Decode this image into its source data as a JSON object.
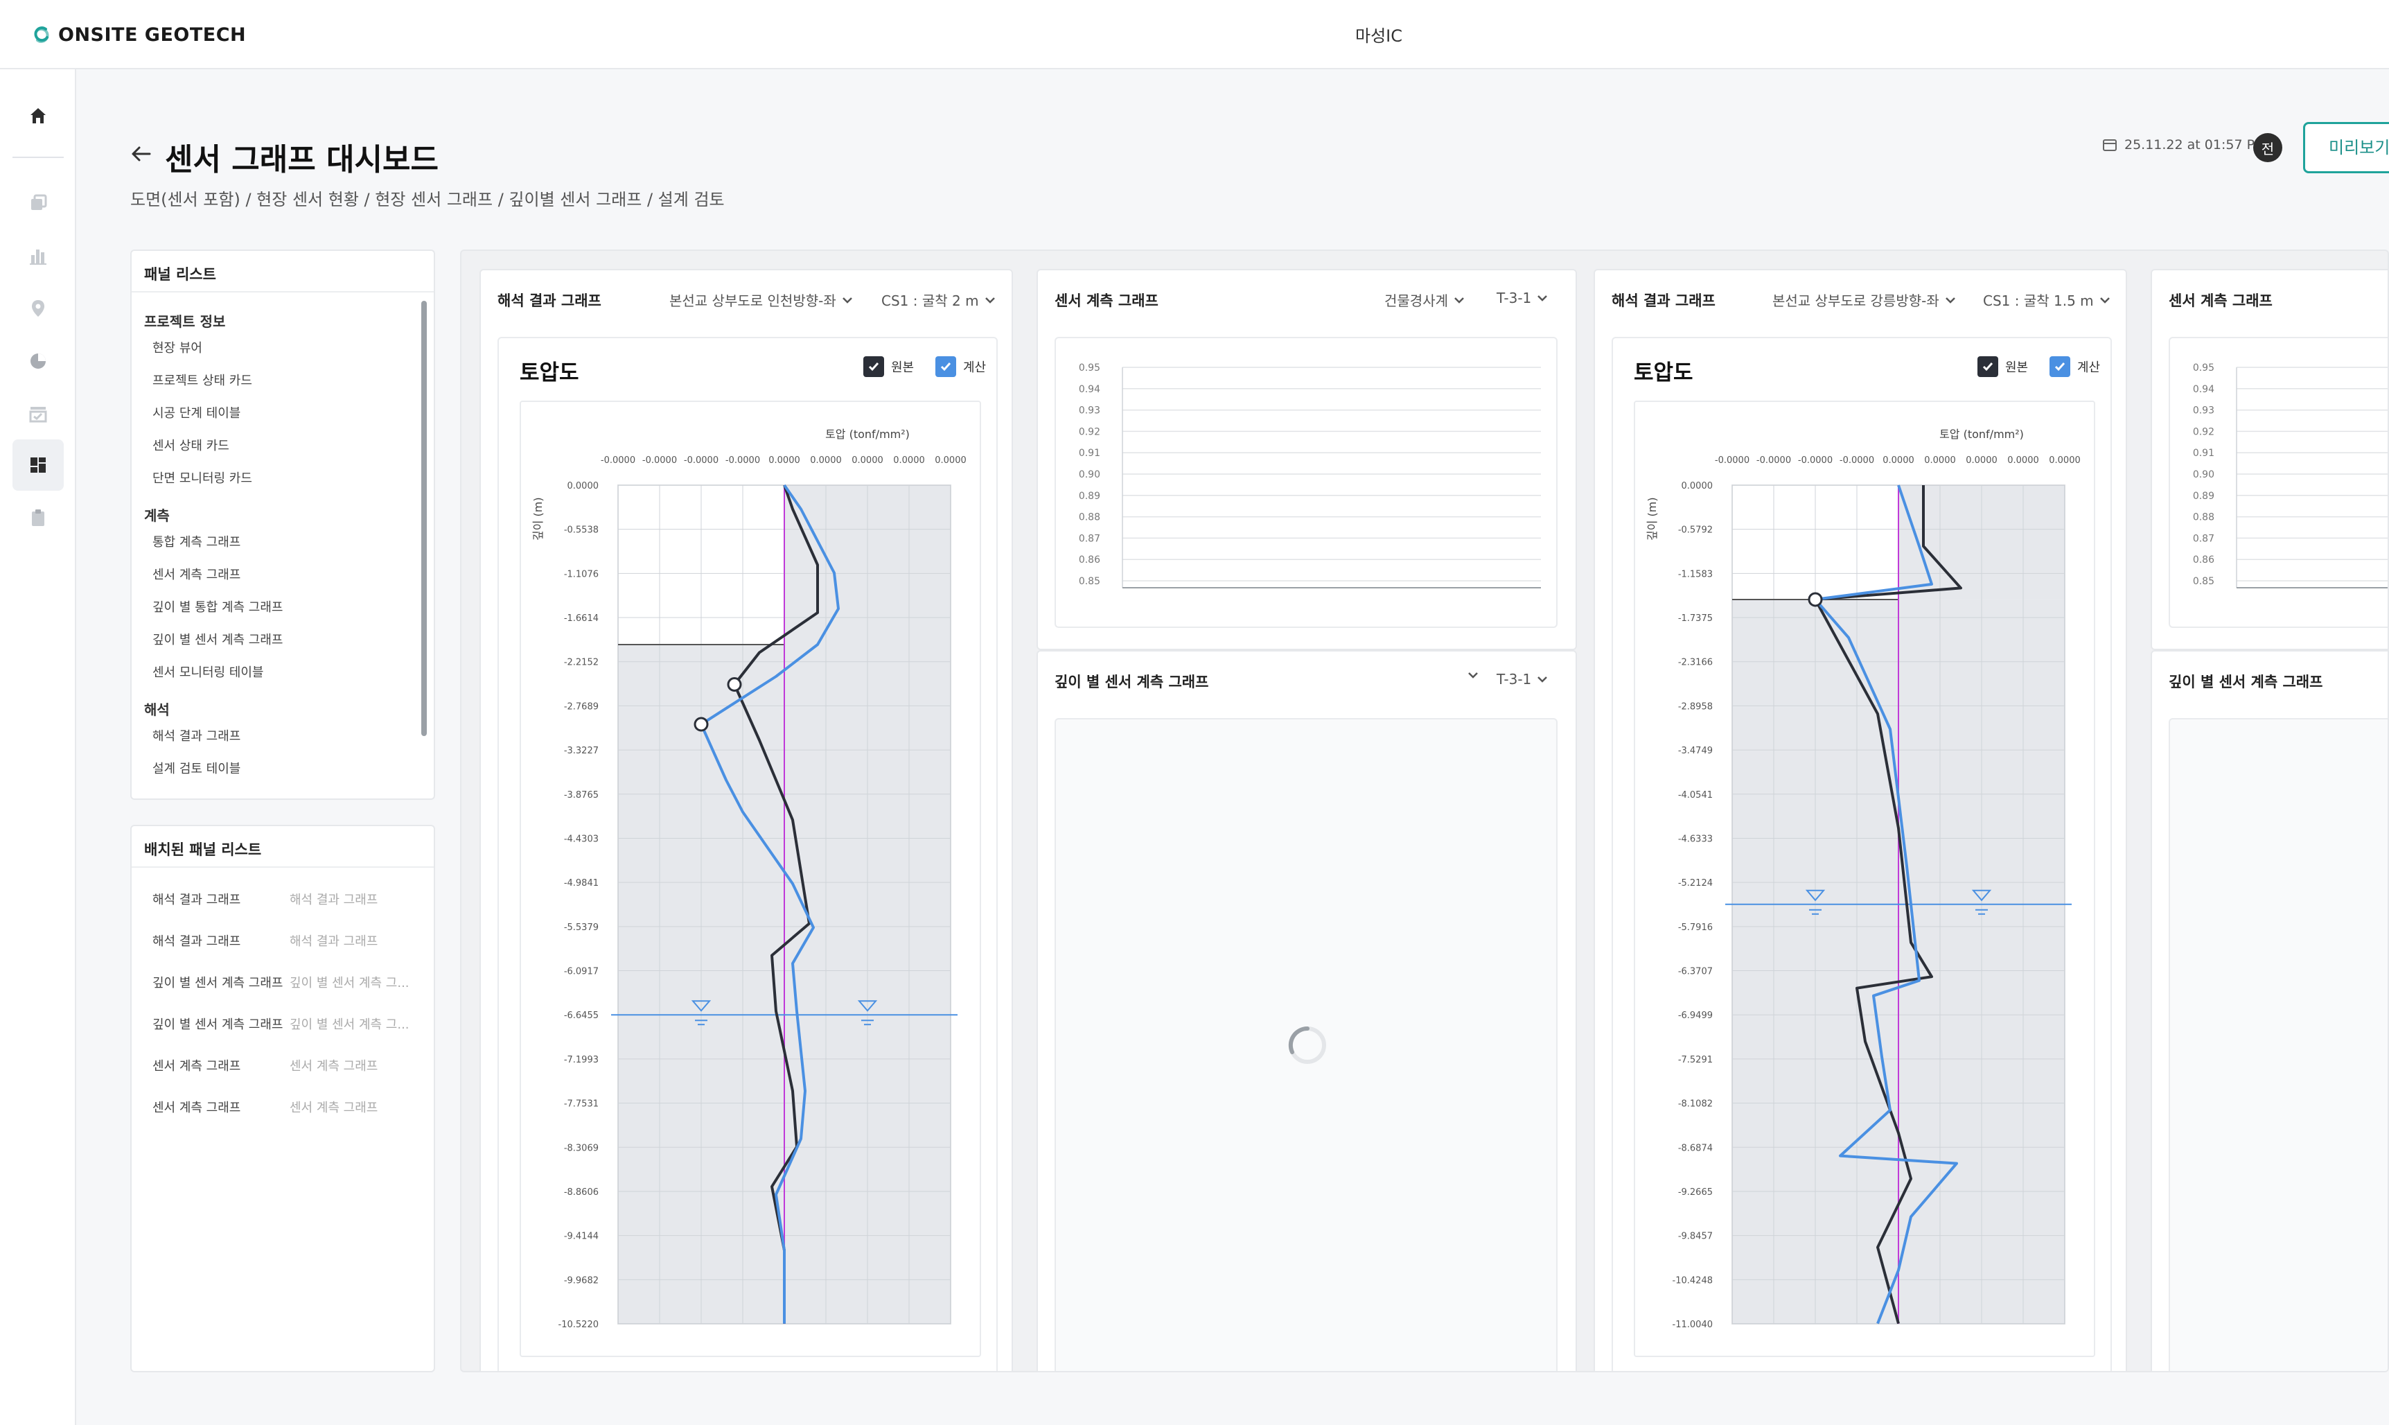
{
  "app": {
    "brand": "ONSITE GEOTECH",
    "site": "마성IC"
  },
  "nav": {
    "icons": [
      "home-icon",
      "layers-icon",
      "bar-chart-icon",
      "location-pin-icon",
      "pie-chart-icon",
      "checklist-icon",
      "dashboard-icon",
      "clipboard-icon"
    ],
    "active": "dashboard-icon"
  },
  "header": {
    "title": "센서 그래프 대시보드",
    "breadcrumb": "도면(센서 포함) / 현장 센서 현황 / 현장 센서 그래프 / 깊이별 센서 그래프 / 설계 검토",
    "datetime": "25.11.22 at 01:57 PM",
    "avatar": "전",
    "preview": "미리보기"
  },
  "panel_list": {
    "title": "패널 리스트",
    "groups": [
      {
        "title": "프로젝트 정보",
        "items": [
          "현장 뷰어",
          "프로젝트 상태 카드",
          "시공 단계 테이블",
          "센서 상태 카드",
          "단면 모니터링 카드"
        ]
      },
      {
        "title": "계측",
        "items": [
          "통합 계측 그래프",
          "센서 계측 그래프",
          "깊이 별 통합 계측 그래프",
          "깊이 별 센서 계측 그래프",
          "센서 모니터링 테이블"
        ]
      },
      {
        "title": "해석",
        "items": [
          "해석 결과 그래프",
          "설계 검토 테이블"
        ]
      }
    ]
  },
  "placed_list": {
    "title": "배치된 패널 리스트",
    "rows": [
      {
        "name": "해석 결과 그래프",
        "sub": "해석 결과 그래프"
      },
      {
        "name": "해석 결과 그래프",
        "sub": "해석 결과 그래프"
      },
      {
        "name": "깊이 별 센서 계측 그래프",
        "sub": "깊이 별 센서 계측 그..."
      },
      {
        "name": "깊이 별 센서 계측 그래프",
        "sub": "깊이 별 센서 계측 그..."
      },
      {
        "name": "센서 계측 그래프",
        "sub": "센서 계측 그래프"
      },
      {
        "name": "센서 계측 그래프",
        "sub": "센서 계측 그래프"
      }
    ]
  },
  "cards": {
    "analysis1": {
      "title": "해석 결과 그래프",
      "dd1": "본선교 상부도로 인천방향-좌",
      "dd2": "CS1 : 굴착 2 m",
      "chart_title": "토압도",
      "cb1": "원본",
      "cb2": "계산"
    },
    "sensor1": {
      "title": "센서 계측 그래프",
      "dd1": "건물경사계",
      "dd2": "T-3-1"
    },
    "depth1": {
      "title": "깊이 별 센서 계측 그래프",
      "dd1": "",
      "dd2": "T-3-1"
    },
    "analysis2": {
      "title": "해석 결과 그래프",
      "dd1": "본선교 상부도로 강릉방향-좌",
      "dd2": "CS1 : 굴착 1.5 m",
      "chart_title": "토압도",
      "cb1": "원본",
      "cb2": "계산"
    },
    "sensor2": {
      "title": "센서 계측 그래프"
    },
    "depth2": {
      "title": "깊이 별 센서 계측 그래프"
    }
  },
  "colors": {
    "accent": "#1fa39b",
    "original": "#2b2f38",
    "calculated": "#4a90e2",
    "reference": "#c03ad8",
    "water": "#4a90e2"
  },
  "chart_data": [
    {
      "type": "line",
      "title": "토압도",
      "xlabel": "토압 (tonf/mm²)",
      "ylabel": "깊이 (m)",
      "x_ticks": [
        "-0.0000",
        "-0.0000",
        "-0.0000",
        "-0.0000",
        "0.0000",
        "0.0000",
        "0.0000",
        "0.0000",
        "0.0000"
      ],
      "y_ticks": [
        "0.0000",
        "-0.5538",
        "-1.1076",
        "-1.6614",
        "-2.2152",
        "-2.7689",
        "-3.3227",
        "-3.8765",
        "-4.4303",
        "-4.9841",
        "-5.5379",
        "-6.0917",
        "-6.6455",
        "-7.1993",
        "-7.7531",
        "-8.3069",
        "-8.8606",
        "-9.4144",
        "-9.9682",
        "-10.5220"
      ],
      "ylim": [
        -10.522,
        0
      ],
      "xlim": [
        -0.4,
        0.4
      ],
      "reference_x": 0,
      "excavation_depth": -2.0,
      "water_level": -6.6455,
      "series": [
        {
          "name": "원본",
          "points": [
            [
              0,
              0
            ],
            [
              0.02,
              -0.3
            ],
            [
              0.08,
              -1.0
            ],
            [
              0.08,
              -1.6
            ],
            [
              -0.06,
              -2.1
            ],
            [
              -0.12,
              -2.5
            ],
            [
              -0.06,
              -3.2
            ],
            [
              0.02,
              -4.2
            ],
            [
              0.06,
              -5.5
            ],
            [
              -0.03,
              -5.9
            ],
            [
              -0.02,
              -6.6
            ],
            [
              0.02,
              -7.6
            ],
            [
              0.03,
              -8.3
            ],
            [
              -0.03,
              -8.8
            ],
            [
              0,
              -9.6
            ],
            [
              0,
              -10.52
            ]
          ]
        },
        {
          "name": "계산",
          "points": [
            [
              0,
              0
            ],
            [
              0.04,
              -0.3
            ],
            [
              0.12,
              -1.1
            ],
            [
              0.13,
              -1.55
            ],
            [
              0.08,
              -2.0
            ],
            [
              -0.02,
              -2.4
            ],
            [
              -0.2,
              -3.0
            ],
            [
              -0.14,
              -3.7
            ],
            [
              -0.1,
              -4.1
            ],
            [
              0.02,
              -5.0
            ],
            [
              0.07,
              -5.55
            ],
            [
              0.02,
              -6.0
            ],
            [
              0.03,
              -6.6
            ],
            [
              0.05,
              -7.6
            ],
            [
              0.04,
              -8.2
            ],
            [
              -0.02,
              -8.9
            ],
            [
              0,
              -9.6
            ],
            [
              0,
              -10.52
            ]
          ]
        }
      ],
      "markers": [
        {
          "x": -0.12,
          "y": -2.5
        },
        {
          "x": -0.2,
          "y": -3.0
        }
      ]
    },
    {
      "type": "line",
      "title": "토압도",
      "xlabel": "토압 (tonf/mm²)",
      "ylabel": "깊이 (m)",
      "x_ticks": [
        "-0.0000",
        "-0.0000",
        "-0.0000",
        "-0.0000",
        "0.0000",
        "0.0000",
        "0.0000",
        "0.0000",
        "0.0000"
      ],
      "y_ticks": [
        "0.0000",
        "-0.5792",
        "-1.1583",
        "-1.7375",
        "-2.3166",
        "-2.8958",
        "-3.4749",
        "-4.0541",
        "-4.6333",
        "-5.2124",
        "-5.7916",
        "-6.3707",
        "-6.9499",
        "-7.5291",
        "-8.1082",
        "-8.6874",
        "-9.2665",
        "-9.8457",
        "-10.4248",
        "-11.0040"
      ],
      "ylim": [
        -11.004,
        0
      ],
      "xlim": [
        -0.4,
        0.4
      ],
      "reference_x": 0,
      "excavation_depth": -1.5,
      "water_level": -5.5,
      "series": [
        {
          "name": "원본",
          "points": [
            [
              0.06,
              0
            ],
            [
              0.06,
              -0.8
            ],
            [
              0.15,
              -1.35
            ],
            [
              -0.2,
              -1.5
            ],
            [
              -0.16,
              -1.9
            ],
            [
              -0.05,
              -3.0
            ],
            [
              0,
              -4.5
            ],
            [
              0.03,
              -6.0
            ],
            [
              0.08,
              -6.45
            ],
            [
              -0.1,
              -6.6
            ],
            [
              -0.08,
              -7.3
            ],
            [
              0,
              -8.5
            ],
            [
              0.03,
              -9.1
            ],
            [
              -0.05,
              -10.0
            ],
            [
              0,
              -11.0
            ]
          ]
        },
        {
          "name": "계산",
          "points": [
            [
              0,
              0
            ],
            [
              0.05,
              -0.8
            ],
            [
              0.08,
              -1.3
            ],
            [
              -0.2,
              -1.5
            ],
            [
              -0.12,
              -2.0
            ],
            [
              -0.02,
              -3.2
            ],
            [
              0.02,
              -5.0
            ],
            [
              0.05,
              -6.5
            ],
            [
              -0.06,
              -6.7
            ],
            [
              -0.04,
              -7.5
            ],
            [
              -0.02,
              -8.2
            ],
            [
              -0.14,
              -8.8
            ],
            [
              0.14,
              -8.9
            ],
            [
              0.03,
              -9.6
            ],
            [
              0,
              -10.3
            ],
            [
              -0.05,
              -11.0
            ]
          ]
        }
      ],
      "markers": [
        {
          "x": -0.2,
          "y": -1.5
        }
      ]
    },
    {
      "type": "line",
      "title": "센서 계측 그래프",
      "y_ticks": [
        "0.95",
        "0.94",
        "0.93",
        "0.92",
        "0.91",
        "0.90",
        "0.89",
        "0.88",
        "0.87",
        "0.86",
        "0.85"
      ],
      "ylim": [
        0.85,
        0.95
      ],
      "series": []
    },
    {
      "type": "line",
      "title": "센서 계측 그래프",
      "y_ticks": [
        "0.95",
        "0.94",
        "0.93",
        "0.92",
        "0.91",
        "0.90",
        "0.89",
        "0.88",
        "0.87",
        "0.86",
        "0.85"
      ],
      "ylim": [
        0.85,
        0.95
      ],
      "series": []
    }
  ]
}
